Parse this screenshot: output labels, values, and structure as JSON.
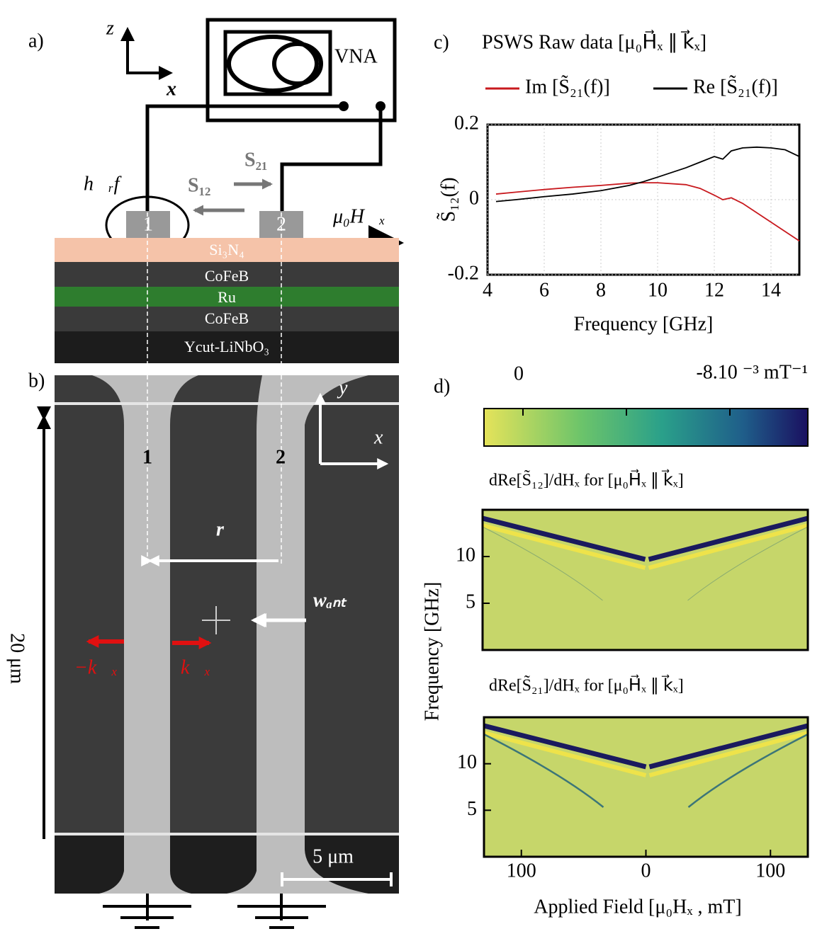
{
  "panel_a": {
    "label": "a)",
    "axis_z": "z",
    "axis_x": "x",
    "instrument": "VNA",
    "field_rf": "h⃗ᵣf",
    "s12": "S₁₂",
    "s21": "S₂₁",
    "port1": "1",
    "port2": "2",
    "field_static": "μ₀H⃗ₓ",
    "layers": [
      "Si₃N₄",
      "CoFeB",
      "Ru",
      "CoFeB",
      "Ycut-LiNbO₃"
    ]
  },
  "panel_b": {
    "label": "b)",
    "axis_y": "y",
    "axis_x": "x",
    "antenna1": "1",
    "antenna2": "2",
    "distance": "r",
    "width": "wₐₙₜ",
    "height_scale": "20 μm",
    "k_minus": "−k⃗ₓ",
    "k_plus": "k⃗ₓ",
    "scale_bar": "5 μm"
  },
  "panel_c": {
    "label": "c)"
  },
  "panel_d": {
    "label": "d)",
    "colorbar_min": "0",
    "colorbar_max": "-8.10 ⁻³ mT⁻¹",
    "ylabel": "Frequency [GHz]",
    "xlabel": "Applied Field [μ₀Hₓ , mT]"
  },
  "chart_data": [
    {
      "type": "line",
      "title": "PSWS Raw data [μ₀H⃗ₓ ∥ k⃗ₓ]",
      "xlabel": "Frequency [GHz]",
      "ylabel": "S̃₁₂(f)",
      "x": [
        4.3,
        5,
        6,
        7,
        8,
        9,
        9.5,
        10,
        11,
        11.5,
        12,
        12.3,
        12.6,
        13,
        13.5,
        14,
        14.5,
        15
      ],
      "series": [
        {
          "name": "Im [S̃₂₁(f)]",
          "color": "#c8191e",
          "values": [
            0.015,
            0.02,
            0.027,
            0.033,
            0.038,
            0.044,
            0.045,
            0.045,
            0.04,
            0.03,
            0.012,
            0.0,
            0.005,
            -0.01,
            -0.035,
            -0.06,
            -0.085,
            -0.11
          ]
        },
        {
          "name": "Re [S̃₂₁(f)]",
          "color": "#000000",
          "values": [
            -0.005,
            0.0,
            0.008,
            0.015,
            0.024,
            0.038,
            0.048,
            0.06,
            0.085,
            0.1,
            0.115,
            0.108,
            0.13,
            0.138,
            0.14,
            0.138,
            0.133,
            0.115
          ]
        }
      ],
      "xlim": [
        4,
        15
      ],
      "ylim": [
        -0.2,
        0.2
      ],
      "xticks": [
        4,
        6,
        8,
        10,
        12,
        14
      ],
      "yticks": [
        -0.2,
        0,
        0.2
      ],
      "grid": true
    },
    {
      "type": "heatmap",
      "title": "dRe[S̃₁₂]/dHₓ  for [μ₀H⃗ₓ ∥ k⃗ₓ]",
      "xlim": [
        -130,
        130
      ],
      "ylim": [
        0,
        15
      ],
      "yticks": [
        5,
        10
      ]
    },
    {
      "type": "heatmap",
      "title": "dRe[S̃₂₁]/dHₓ  for [μ₀H⃗ₓ ∥ k⃗ₓ]",
      "xlim": [
        -130,
        130
      ],
      "ylim": [
        0,
        15
      ],
      "yticks": [
        5,
        10
      ],
      "xticks": [
        {
          "value": -100,
          "label": "100"
        },
        0,
        100
      ]
    }
  ]
}
